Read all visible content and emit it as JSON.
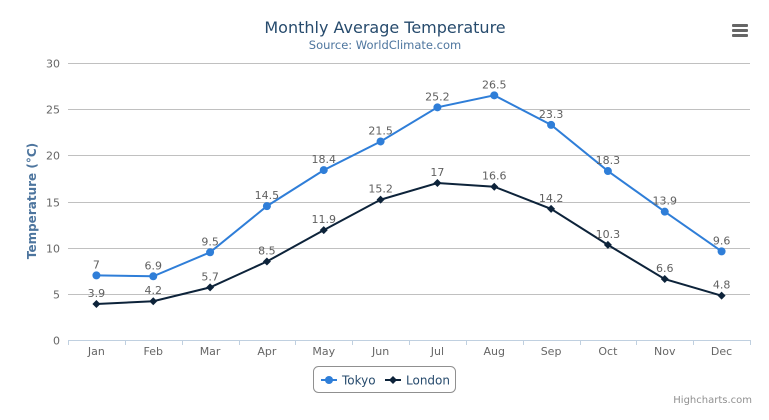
{
  "chart_data": {
    "type": "line",
    "title": "Monthly Average Temperature",
    "subtitle": "Source: WorldClimate.com",
    "xlabel": "",
    "ylabel": "Temperature (°C)",
    "categories": [
      "Jan",
      "Feb",
      "Mar",
      "Apr",
      "May",
      "Jun",
      "Jul",
      "Aug",
      "Sep",
      "Oct",
      "Nov",
      "Dec"
    ],
    "ylim": [
      0,
      30
    ],
    "yticks": [
      0,
      5,
      10,
      15,
      20,
      25,
      30
    ],
    "grid": true,
    "legend_placement": "bottom-center",
    "data_labels": true,
    "series": [
      {
        "name": "Tokyo",
        "color": "#2f7ed8",
        "marker": "circle",
        "values": [
          7.0,
          6.9,
          9.5,
          14.5,
          18.4,
          21.5,
          25.2,
          26.5,
          23.3,
          18.3,
          13.9,
          9.6
        ]
      },
      {
        "name": "London",
        "color": "#0d233a",
        "marker": "diamond",
        "values": [
          3.9,
          4.2,
          5.7,
          8.5,
          11.9,
          15.2,
          17.0,
          16.6,
          14.2,
          10.3,
          6.6,
          4.8
        ]
      }
    ]
  },
  "credits": "Highcharts.com",
  "menu_icon": "hamburger-menu-icon",
  "colors": {
    "title": "#274b6d",
    "subtitle": "#4d759e",
    "grid": "#c0c0c0",
    "axis": "#c0d0e0"
  }
}
